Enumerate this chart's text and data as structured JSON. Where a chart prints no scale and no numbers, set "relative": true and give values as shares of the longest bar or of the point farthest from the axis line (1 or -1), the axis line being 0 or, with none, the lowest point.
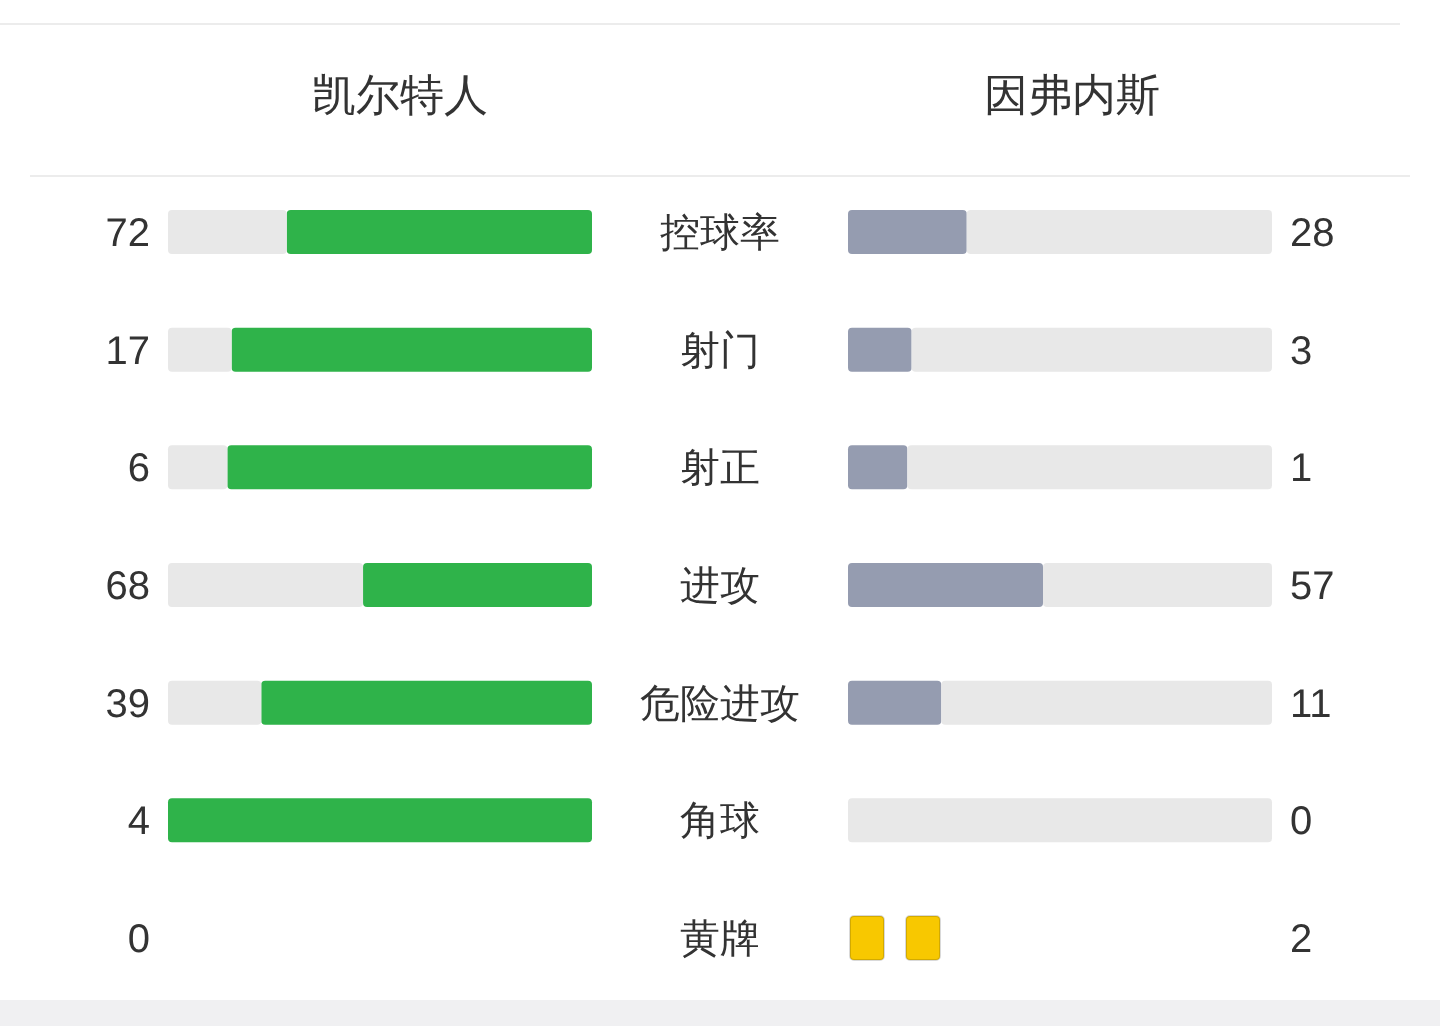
{
  "chart_data": [
    {
      "type": "bar",
      "orientation": "horizontal",
      "relative": true,
      "stacked": true,
      "title": "凯尔特人",
      "categories": [
        "控球率",
        "射门",
        "射正",
        "进攻",
        "危险进攻",
        "角球"
      ],
      "series": [
        {
          "color": "#2fb34a",
          "values": [
            0.72,
            0.85,
            0.86,
            0.54,
            0.78,
            1
          ]
        },
        {
          "color": "#e8e8e8",
          "values": [
            0.28,
            0.15,
            0.14,
            0.46,
            0.22,
            0
          ]
        }
      ],
      "annotations": [
        "72",
        "17",
        "6",
        "68",
        "39",
        "4"
      ]
    },
    {
      "type": "bar",
      "orientation": "horizontal",
      "relative": true,
      "stacked": true,
      "title": "因弗内斯",
      "categories": [
        null,
        null,
        null,
        null,
        null,
        null
      ],
      "series": [
        {
          "color": "#959cb0",
          "values": [
            0.28,
            0.15,
            0.14,
            0.46,
            0.22,
            0
          ]
        },
        {
          "color": "#e8e8e8",
          "values": [
            0.72,
            0.85,
            0.86,
            0.54,
            0.78,
            1
          ]
        }
      ],
      "annotations": [
        "28",
        "3",
        "1",
        "57",
        "11",
        "0"
      ]
    },
    {
      "type": "other",
      "data_labels": true,
      "categories": [
        "黄牌"
      ],
      "series": [
        {
          "values": [
            0
          ]
        },
        {
          "color": "#f8c800",
          "values": [
            2
          ]
        }
      ]
    }
  ]
}
